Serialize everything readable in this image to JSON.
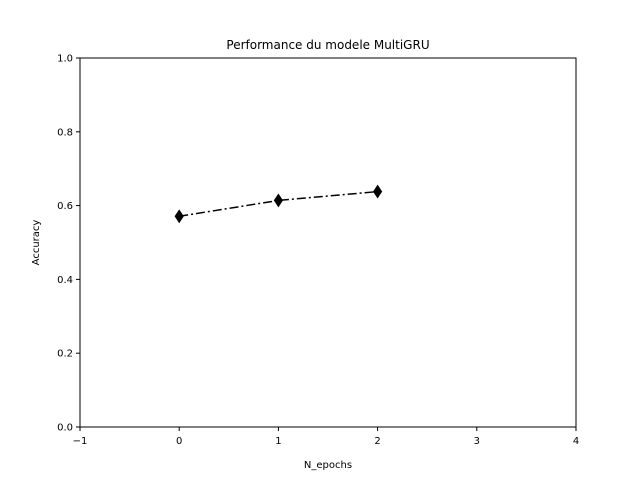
{
  "chart_data": {
    "type": "line",
    "title": "Performance du modele MultiGRU",
    "xlabel": "N_epochs",
    "ylabel": "Accuracy",
    "xlim": [
      -1,
      4
    ],
    "ylim": [
      0.0,
      1.0
    ],
    "x_ticks": [
      "−1",
      "0",
      "1",
      "2",
      "3",
      "4"
    ],
    "y_ticks": [
      "0.0",
      "0.2",
      "0.4",
      "0.6",
      "0.8",
      "1.0"
    ],
    "grid": false,
    "series": [
      {
        "x": [
          0,
          1,
          2
        ],
        "values": [
          0.571,
          0.614,
          0.638
        ],
        "color": "#000000",
        "line_style": "dash-dot",
        "marker": "thin-diamond"
      }
    ]
  }
}
